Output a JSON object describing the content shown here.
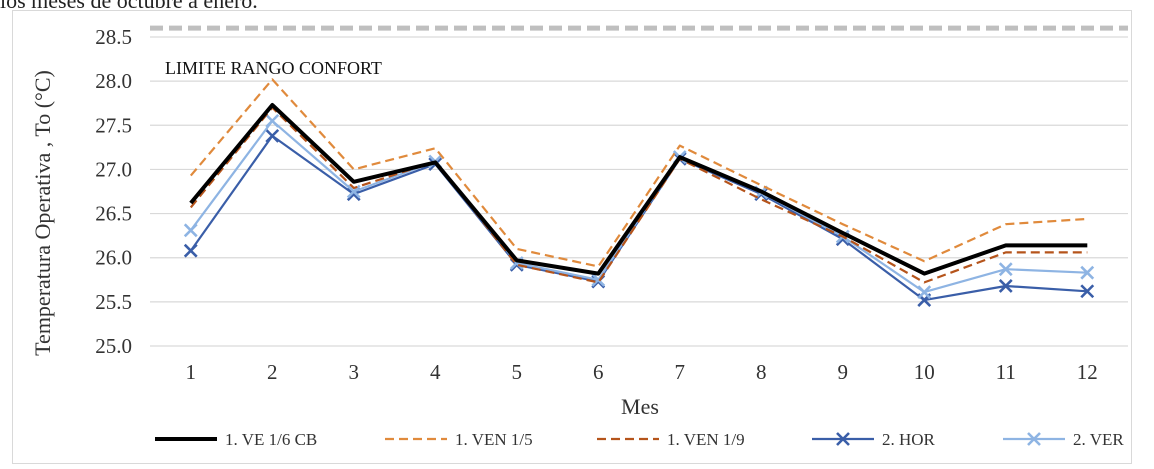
{
  "caption_fragment": "los meses de octubre a enero.",
  "chart_data": {
    "type": "line",
    "title": "",
    "xlabel": "Mes",
    "ylabel": "Temperatura Operativa , To (°C)",
    "x": [
      1,
      2,
      3,
      4,
      5,
      6,
      7,
      8,
      9,
      10,
      11,
      12
    ],
    "ylim": [
      25.0,
      28.5
    ],
    "yticks": [
      "25.0",
      "25.5",
      "26.0",
      "26.5",
      "27.0",
      "27.5",
      "28.0",
      "28.5"
    ],
    "grid": true,
    "legend_position": "bottom",
    "reference_line": {
      "label": "LIMITE RANGO CONFORT",
      "value": 28.6,
      "color": "#bfbfbf"
    },
    "series": [
      {
        "name": "1. VE 1/6 CB",
        "color": "#000000",
        "style": "solid-thick",
        "values": [
          26.62,
          27.73,
          26.86,
          27.08,
          25.97,
          25.82,
          27.14,
          26.75,
          26.28,
          25.82,
          26.14,
          26.14
        ]
      },
      {
        "name": "1. VEN 1/5",
        "color": "#e08a3c",
        "style": "dashed",
        "values": [
          26.93,
          28.02,
          27.0,
          27.24,
          26.1,
          25.9,
          27.27,
          26.82,
          26.38,
          25.96,
          26.38,
          26.44
        ]
      },
      {
        "name": "1. VEN 1/9",
        "color": "#b5541b",
        "style": "dashed",
        "values": [
          26.57,
          27.7,
          26.79,
          27.09,
          25.92,
          25.72,
          27.12,
          26.66,
          26.24,
          25.72,
          26.06,
          26.06
        ]
      },
      {
        "name": "2.  HOR",
        "color": "#3a5ea8",
        "style": "solid-x",
        "values": [
          26.08,
          27.38,
          26.72,
          27.06,
          25.92,
          25.73,
          27.12,
          26.72,
          26.21,
          25.52,
          25.68,
          25.62
        ]
      },
      {
        "name": "2. VER",
        "color": "#8eb4e3",
        "style": "solid-x",
        "values": [
          26.31,
          27.55,
          26.75,
          27.09,
          25.94,
          25.75,
          27.14,
          26.74,
          26.24,
          25.61,
          25.87,
          25.83
        ]
      }
    ]
  }
}
